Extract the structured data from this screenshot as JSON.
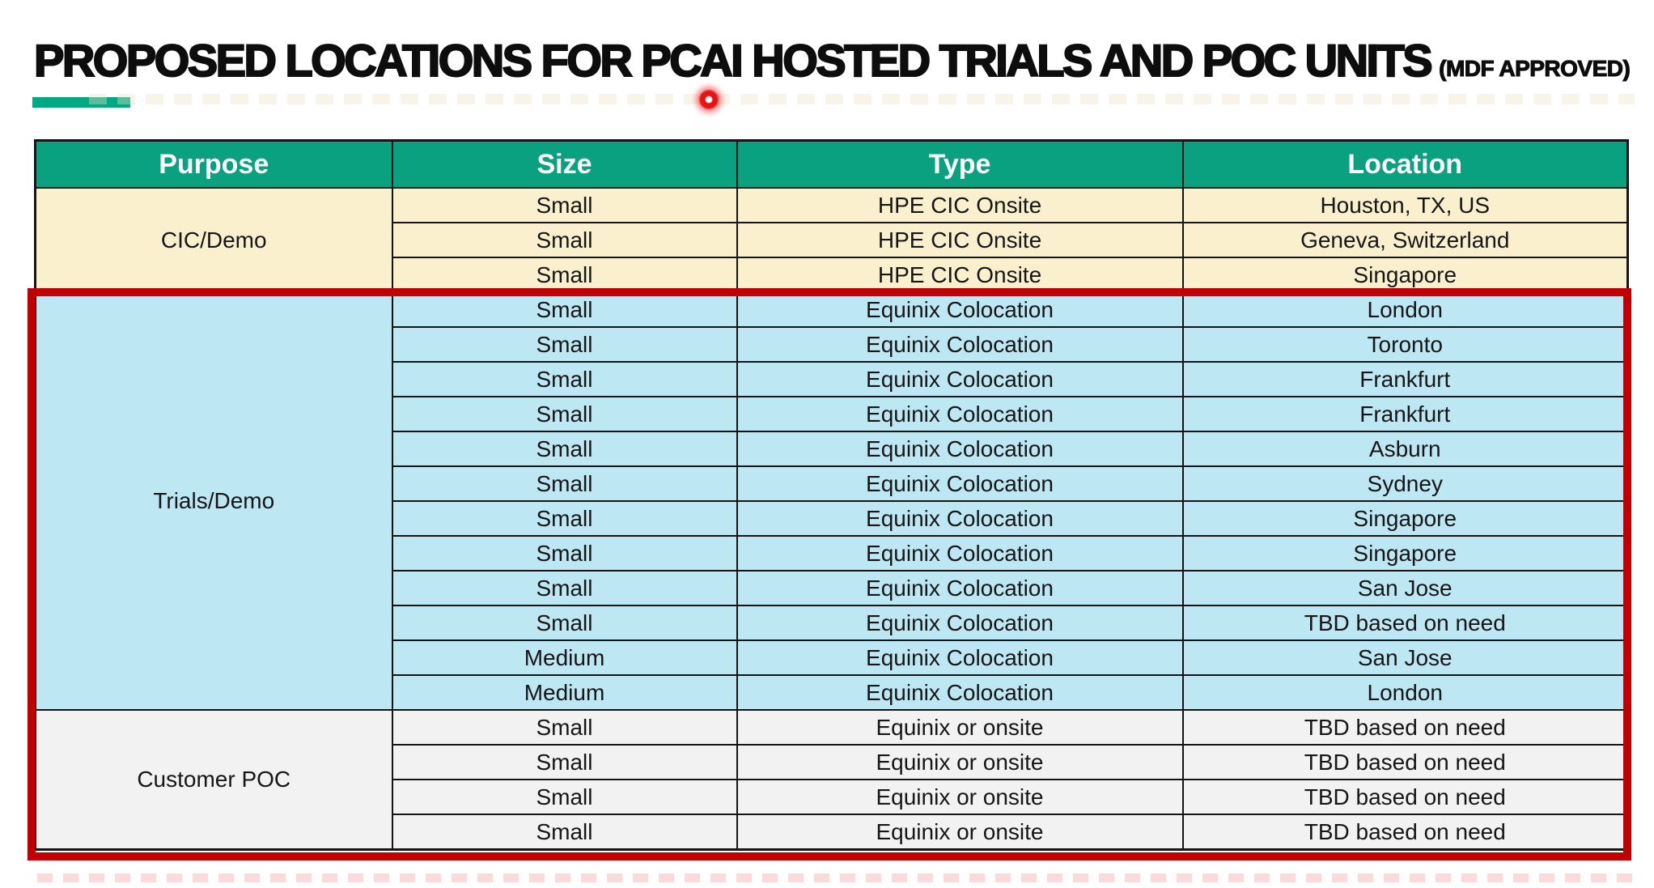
{
  "slide_title": {
    "main": "PROPOSED LOCATIONS FOR PCAI HOSTED TRIALS AND POC UNITS",
    "qualifier": "(MDF APPROVED)"
  },
  "table": {
    "headers": [
      "Purpose",
      "Size",
      "Type",
      "Location"
    ],
    "sections": [
      {
        "purpose": "CIC/Demo",
        "bg": "#FBF0CE",
        "rows": [
          [
            "Small",
            "HPE CIC Onsite",
            "Houston, TX, US"
          ],
          [
            "Small",
            "HPE CIC Onsite",
            "Geneva, Switzerland"
          ],
          [
            "Small",
            "HPE CIC Onsite",
            "Singapore"
          ]
        ]
      },
      {
        "purpose": "Trials/Demo",
        "bg": "#BDE7F2",
        "rows": [
          [
            "Small",
            "Equinix Colocation",
            "London"
          ],
          [
            "Small",
            "Equinix Colocation",
            "Toronto"
          ],
          [
            "Small",
            "Equinix Colocation",
            "Frankfurt"
          ],
          [
            "Small",
            "Equinix Colocation",
            "Frankfurt"
          ],
          [
            "Small",
            "Equinix Colocation",
            "Asburn"
          ],
          [
            "Small",
            "Equinix Colocation",
            "Sydney"
          ],
          [
            "Small",
            "Equinix Colocation",
            "Singapore"
          ],
          [
            "Small",
            "Equinix Colocation",
            "Singapore"
          ],
          [
            "Small",
            "Equinix Colocation",
            "San Jose"
          ],
          [
            "Small",
            "Equinix Colocation",
            "TBD based on need"
          ],
          [
            "Medium",
            "Equinix Colocation",
            "San Jose"
          ],
          [
            "Medium",
            "Equinix Colocation",
            "London"
          ]
        ]
      },
      {
        "purpose": "Customer POC",
        "bg": "#F2F2F2",
        "rows": [
          [
            "Small",
            "Equinix or onsite",
            "TBD based on need"
          ],
          [
            "Small",
            "Equinix or onsite",
            "TBD based on need"
          ],
          [
            "Small",
            "Equinix or onsite",
            "TBD based on need"
          ],
          [
            "Small",
            "Equinix or onsite",
            "TBD based on need"
          ]
        ]
      }
    ]
  },
  "colors": {
    "header_green": "#0AA181",
    "underline_green": "#01A982",
    "highlight_red": "#C00000",
    "cream": "#FBF0CE",
    "light_blue": "#BDE7F2",
    "light_gray": "#F2F2F2",
    "border_black": "#141414"
  },
  "annotations": {
    "laser_pointer_icon": "red-laser-dot"
  }
}
